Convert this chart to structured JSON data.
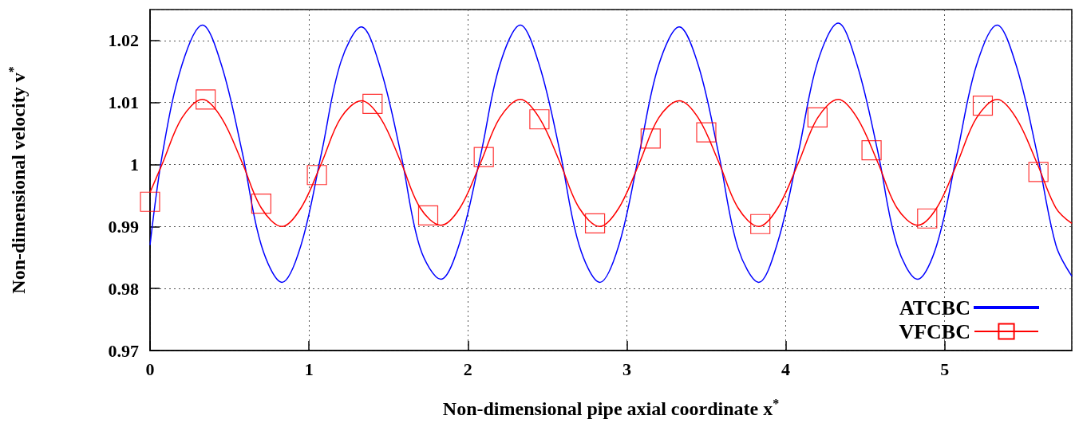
{
  "chart_data": {
    "type": "line",
    "xlabel": "Non-dimensional pipe axial coordinate x$^{*}$",
    "ylabel": "Non-dimensional velocity v$^{*}$",
    "x": [
      0,
      0.08,
      0.2,
      0.33,
      0.45,
      0.58,
      0.7,
      0.83,
      0.95,
      1.08,
      1.2,
      1.33,
      1.45,
      1.58,
      1.7,
      1.83,
      1.95,
      2.08,
      2.2,
      2.33,
      2.45,
      2.58,
      2.7,
      2.83,
      2.95,
      3.08,
      3.2,
      3.33,
      3.45,
      3.58,
      3.7,
      3.83,
      3.95,
      4.08,
      4.2,
      4.33,
      4.45,
      4.58,
      4.7,
      4.83,
      4.95,
      5.08,
      5.2,
      5.33,
      5.45,
      5.58,
      5.7,
      5.8
    ],
    "series": [
      {
        "name": "ATCBC",
        "color": "#0000ff",
        "values": [
          0.987,
          1.002,
          1.016,
          1.0225,
          1.016,
          1.002,
          0.987,
          0.981,
          0.987,
          1.002,
          1.0165,
          1.0222,
          1.0155,
          1.0015,
          0.9865,
          0.9815,
          0.9875,
          1.0015,
          1.016,
          1.0225,
          1.016,
          1.002,
          0.987,
          0.981,
          0.987,
          1.002,
          1.016,
          1.0222,
          1.016,
          1.0015,
          0.9865,
          0.981,
          0.9875,
          1.002,
          1.0165,
          1.0228,
          1.016,
          1.002,
          0.987,
          0.9815,
          0.987,
          1.002,
          1.016,
          1.0225,
          1.016,
          1.002,
          0.987,
          0.982
        ]
      },
      {
        "name": "VFCBC",
        "color": "#ff0000",
        "values": [
          0.9955,
          1.0003,
          1.0075,
          1.0105,
          1.0075,
          1.0003,
          0.993,
          0.99,
          0.993,
          1.0003,
          1.0075,
          1.0103,
          1.0075,
          1.0003,
          0.993,
          0.9902,
          0.993,
          1.0003,
          1.0075,
          1.0105,
          1.0075,
          1.0003,
          0.993,
          0.99,
          0.993,
          1.0003,
          1.0075,
          1.0103,
          1.0075,
          1.0003,
          0.993,
          0.99,
          0.993,
          1.0003,
          1.0075,
          1.0105,
          1.0075,
          1.0003,
          0.993,
          0.9902,
          0.993,
          1.0003,
          1.0075,
          1.0105,
          1.0075,
          1.0003,
          0.993,
          0.9905
        ]
      },
      {
        "type": "scatter",
        "color": "#ff0000",
        "marker": "square",
        "x": [
          0,
          0.35,
          0.7,
          1.05,
          1.4,
          1.75,
          2.1,
          2.45,
          2.8,
          3.15,
          3.5,
          3.84,
          4.2,
          4.54,
          4.89,
          5.24,
          5.59
        ],
        "values": [
          0.994,
          1.0105,
          0.9937,
          0.9983,
          1.0098,
          0.9918,
          1.0012,
          1.0073,
          0.9905,
          1.0042,
          1.0052,
          0.9904,
          1.0076,
          1.0023,
          0.9913,
          1.0095,
          0.9988
        ]
      }
    ],
    "xlim": [
      0,
      5.8
    ],
    "xticks": [
      0,
      1,
      2,
      3,
      4,
      5
    ],
    "ylim": [
      0.97,
      1.025
    ],
    "yticks": [
      0.97,
      0.98,
      0.99,
      1,
      1.01,
      1.02
    ],
    "grid": true,
    "legend": "bottom right"
  }
}
